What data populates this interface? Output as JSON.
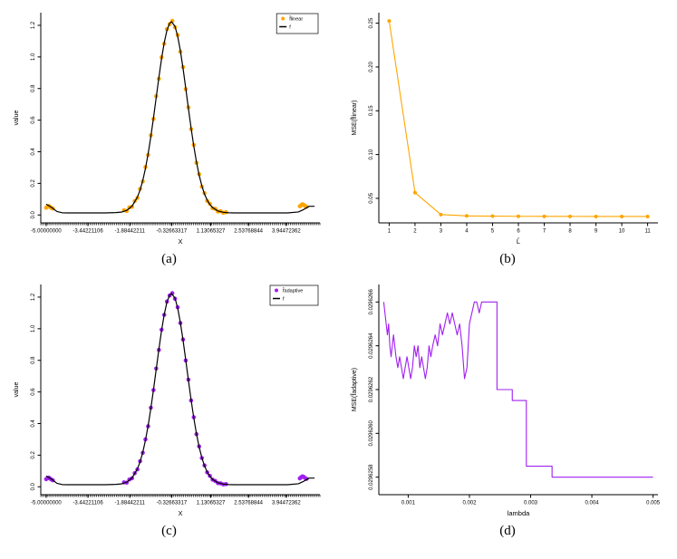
{
  "figure": {
    "background": "#ffffff"
  },
  "captions": {
    "a": "(a)",
    "b": "(b)",
    "c": "(c)",
    "d": "(d)"
  },
  "colors": {
    "orange": "#FFA500",
    "purple": "#A020F0",
    "black": "#000000"
  },
  "chart_data": [
    {
      "id": "a",
      "type": "line",
      "title": "",
      "xlabel": "X",
      "ylabel": "value",
      "xlim": [
        -5.2,
        5.2
      ],
      "ylim": [
        -0.05,
        1.28
      ],
      "rug": true,
      "x_ticks": {
        "values": [
          -5.0,
          -3.44221106,
          -1.88442211,
          -0.32663317,
          1.13065327,
          2.53768844,
          3.94472362
        ],
        "labels": [
          "-5.00000000",
          "-3.44221106",
          "-1.88442211",
          "-0.32663317",
          "1.13065327",
          "2.53768844",
          "3.94472362"
        ]
      },
      "y_ticks": {
        "values": [
          0,
          0.2,
          0.4,
          0.6,
          0.8,
          1.0,
          1.2
        ],
        "labels": [
          "0.0",
          "0.2",
          "0.4",
          "0.6",
          "0.8",
          "1.0",
          "1.2"
        ]
      },
      "legend": {
        "position": "top-right",
        "entries": [
          {
            "label": "f̂linear",
            "color": "#FFA500",
            "marker": "point"
          },
          {
            "label": "f",
            "color": "#000000",
            "marker": "line"
          }
        ]
      },
      "series": [
        {
          "name": "f̂linear",
          "color": "#FFA500",
          "style": "points",
          "r": 2.3,
          "x": [
            -5,
            -4.95,
            -4.9,
            -4.85,
            -4.8,
            -4.75,
            -2.1,
            -2,
            -1.9,
            -1.8,
            -1.7,
            -1.6,
            -1.5,
            -1.4,
            -1.3,
            -1.2,
            -1.1,
            -1,
            -0.9,
            -0.8,
            -0.7,
            -0.6,
            -0.5,
            -0.4,
            -0.3,
            -0.2,
            -0.1,
            0,
            0.1,
            0.2,
            0.3,
            0.4,
            0.5,
            0.6,
            0.7,
            0.8,
            0.9,
            1,
            1.1,
            1.2,
            1.3,
            1.4,
            1.5,
            1.6,
            1.7,
            4.45,
            4.5,
            4.55,
            4.6,
            4.65,
            4.7
          ],
          "y": [
            0.046,
            0.052,
            0.057,
            0.05,
            0.044,
            0.04,
            0.03,
            0.025,
            0.048,
            0.052,
            0.088,
            0.108,
            0.165,
            0.212,
            0.303,
            0.38,
            0.504,
            0.608,
            0.752,
            0.862,
            0.998,
            1.084,
            1.176,
            1.207,
            1.228,
            1.188,
            1.139,
            1.033,
            0.936,
            0.796,
            0.681,
            0.543,
            0.443,
            0.33,
            0.258,
            0.179,
            0.138,
            0.089,
            0.071,
            0.043,
            0.039,
            0.022,
            0.024,
            0.014,
            0.018,
            0.055,
            0.062,
            0.068,
            0.063,
            0.057,
            0.052
          ]
        },
        {
          "name": "f",
          "color": "#000000",
          "style": "line",
          "width": 1.2,
          "x": [
            -5,
            -4.8,
            -4.6,
            -4.4,
            -4.2,
            -4,
            -3.6,
            -3.2,
            -2.8,
            -2.4,
            -2.2,
            -2,
            -1.8,
            -1.6,
            -1.5,
            -1.4,
            -1.3,
            -1.2,
            -1.1,
            -1,
            -0.9,
            -0.8,
            -0.7,
            -0.6,
            -0.5,
            -0.4,
            -0.33,
            -0.2,
            -0.1,
            0,
            0.1,
            0.2,
            0.3,
            0.4,
            0.5,
            0.6,
            0.7,
            0.8,
            0.9,
            1,
            1.1,
            1.2,
            1.4,
            1.6,
            1.8,
            2,
            2.4,
            2.8,
            3.2,
            3.6,
            4,
            4.4,
            4.6,
            4.8,
            5
          ],
          "y": [
            0.068,
            0.048,
            0.022,
            0.014,
            0.013,
            0.013,
            0.013,
            0.013,
            0.013,
            0.015,
            0.018,
            0.029,
            0.056,
            0.113,
            0.158,
            0.218,
            0.295,
            0.387,
            0.495,
            0.615,
            0.743,
            0.87,
            0.989,
            1.091,
            1.168,
            1.213,
            1.223,
            1.194,
            1.131,
            1.04,
            0.928,
            0.803,
            0.674,
            0.55,
            0.436,
            0.336,
            0.252,
            0.185,
            0.132,
            0.094,
            0.066,
            0.047,
            0.025,
            0.017,
            0.014,
            0.013,
            0.013,
            0.013,
            0.013,
            0.013,
            0.013,
            0.019,
            0.035,
            0.055,
            0.055
          ]
        }
      ]
    },
    {
      "id": "b",
      "type": "line",
      "title": "",
      "xlabel": "L̂",
      "ylabel": "MSE(f̂linear)",
      "xlim": [
        0.6,
        11.4
      ],
      "ylim": [
        0.022,
        0.262
      ],
      "rug": false,
      "x_ticks": {
        "values": [
          1,
          2,
          3,
          4,
          5,
          6,
          7,
          8,
          9,
          10,
          11
        ],
        "labels": [
          "1",
          "2",
          "3",
          "4",
          "5",
          "6",
          "7",
          "8",
          "9",
          "10",
          "11"
        ]
      },
      "y_ticks": {
        "values": [
          0.05,
          0.1,
          0.15,
          0.2,
          0.25
        ],
        "labels": [
          "0.05",
          "0.10",
          "0.15",
          "0.20",
          "0.25"
        ]
      },
      "series": [
        {
          "name": "MSE",
          "color": "#FFA500",
          "style": "line+points",
          "r": 2,
          "width": 1.1,
          "x": [
            1,
            2,
            3,
            4,
            5,
            6,
            7,
            8,
            9,
            10,
            11
          ],
          "y": [
            0.2525,
            0.0565,
            0.0315,
            0.03,
            0.0297,
            0.0295,
            0.0294,
            0.0294,
            0.0293,
            0.0293,
            0.0293
          ]
        }
      ]
    },
    {
      "id": "c",
      "type": "line",
      "title": "",
      "xlabel": "X",
      "ylabel": "value",
      "xlim": [
        -5.2,
        5.2
      ],
      "ylim": [
        -0.05,
        1.28
      ],
      "rug": true,
      "x_ticks": {
        "values": [
          -5.0,
          -3.44221106,
          -1.88442211,
          -0.32663317,
          1.13065327,
          2.53768844,
          3.94472362
        ],
        "labels": [
          "-5.00000000",
          "-3.44221106",
          "-1.88442211",
          "-0.32663317",
          "1.13065327",
          "2.53768844",
          "3.94472362"
        ]
      },
      "y_ticks": {
        "values": [
          0,
          0.2,
          0.4,
          0.6,
          0.8,
          1.0,
          1.2
        ],
        "labels": [
          "0.0",
          "0.2",
          "0.4",
          "0.6",
          "0.8",
          "1.0",
          "1.2"
        ]
      },
      "legend": {
        "position": "top-right",
        "entries": [
          {
            "label": "f̂adaptive",
            "color": "#A020F0",
            "marker": "point"
          },
          {
            "label": "f",
            "color": "#000000",
            "marker": "line"
          }
        ]
      },
      "series": [
        {
          "name": "f̂adaptive",
          "color": "#A020F0",
          "style": "points",
          "r": 2.3,
          "x": [
            -5,
            -4.95,
            -4.9,
            -4.85,
            -4.8,
            -4.75,
            -2.1,
            -2,
            -1.9,
            -1.8,
            -1.7,
            -1.6,
            -1.5,
            -1.4,
            -1.3,
            -1.2,
            -1.1,
            -1,
            -0.9,
            -0.8,
            -0.7,
            -0.6,
            -0.5,
            -0.4,
            -0.3,
            -0.2,
            -0.1,
            0,
            0.1,
            0.2,
            0.3,
            0.4,
            0.5,
            0.6,
            0.7,
            0.8,
            0.9,
            1,
            1.1,
            1.2,
            1.3,
            1.4,
            1.5,
            1.6,
            1.7,
            4.45,
            4.5,
            4.55,
            4.6,
            4.65,
            4.7
          ],
          "y": [
            0.048,
            0.054,
            0.058,
            0.051,
            0.045,
            0.041,
            0.028,
            0.026,
            0.046,
            0.054,
            0.086,
            0.11,
            0.162,
            0.215,
            0.3,
            0.383,
            0.5,
            0.612,
            0.748,
            0.866,
            0.994,
            1.088,
            1.172,
            1.21,
            1.225,
            1.19,
            1.136,
            1.036,
            0.932,
            0.799,
            0.678,
            0.546,
            0.44,
            0.333,
            0.255,
            0.182,
            0.135,
            0.091,
            0.069,
            0.045,
            0.037,
            0.023,
            0.022,
            0.015,
            0.017,
            0.053,
            0.06,
            0.066,
            0.062,
            0.055,
            0.05
          ]
        },
        {
          "name": "f",
          "color": "#000000",
          "style": "line",
          "width": 1.2,
          "x": [
            -5,
            -4.8,
            -4.6,
            -4.4,
            -4.2,
            -4,
            -3.6,
            -3.2,
            -2.8,
            -2.4,
            -2.2,
            -2,
            -1.8,
            -1.6,
            -1.5,
            -1.4,
            -1.3,
            -1.2,
            -1.1,
            -1,
            -0.9,
            -0.8,
            -0.7,
            -0.6,
            -0.5,
            -0.4,
            -0.33,
            -0.2,
            -0.1,
            0,
            0.1,
            0.2,
            0.3,
            0.4,
            0.5,
            0.6,
            0.7,
            0.8,
            0.9,
            1,
            1.1,
            1.2,
            1.4,
            1.6,
            1.8,
            2,
            2.4,
            2.8,
            3.2,
            3.6,
            4,
            4.4,
            4.6,
            4.8,
            5
          ],
          "y": [
            0.068,
            0.048,
            0.022,
            0.014,
            0.013,
            0.013,
            0.013,
            0.013,
            0.013,
            0.015,
            0.018,
            0.029,
            0.056,
            0.113,
            0.158,
            0.218,
            0.295,
            0.387,
            0.495,
            0.615,
            0.743,
            0.87,
            0.989,
            1.091,
            1.168,
            1.213,
            1.223,
            1.194,
            1.131,
            1.04,
            0.928,
            0.803,
            0.674,
            0.55,
            0.436,
            0.336,
            0.252,
            0.185,
            0.132,
            0.094,
            0.066,
            0.047,
            0.025,
            0.017,
            0.014,
            0.013,
            0.013,
            0.013,
            0.013,
            0.013,
            0.013,
            0.019,
            0.035,
            0.055,
            0.055
          ]
        }
      ]
    },
    {
      "id": "d",
      "type": "line",
      "title": "",
      "xlabel": "lambda",
      "ylabel": "MSE(f̂adaptive)",
      "xlim": [
        0.00052,
        0.00508
      ],
      "ylim": [
        0.02962572,
        0.02962668
      ],
      "rug": false,
      "x_ticks": {
        "values": [
          0.001,
          0.002,
          0.003,
          0.004,
          0.005
        ],
        "labels": [
          "0.001",
          "0.002",
          "0.003",
          "0.004",
          "0.005"
        ]
      },
      "y_ticks": {
        "values": [
          0.0296258,
          0.029626,
          0.0296262,
          0.0296264,
          0.0296266
        ],
        "labels": [
          "0.0296258",
          "0.0296260",
          "0.0296262",
          "0.0296264",
          "0.0296266"
        ]
      },
      "series": [
        {
          "name": "MSE",
          "color": "#A020F0",
          "style": "line",
          "width": 1.1,
          "x": [
            0.0006,
            0.00062,
            0.00064,
            0.00066,
            0.00068,
            0.0007,
            0.00072,
            0.00074,
            0.00076,
            0.00078,
            0.0008,
            0.00083,
            0.00086,
            0.00089,
            0.00092,
            0.00095,
            0.00098,
            0.00101,
            0.00104,
            0.00107,
            0.0011,
            0.00113,
            0.00116,
            0.00119,
            0.00122,
            0.00125,
            0.00128,
            0.00131,
            0.00134,
            0.00137,
            0.0014,
            0.00144,
            0.00148,
            0.00152,
            0.00156,
            0.0016,
            0.00164,
            0.00168,
            0.00172,
            0.00176,
            0.0018,
            0.00184,
            0.00188,
            0.00192,
            0.00196,
            0.002,
            0.00204,
            0.00208,
            0.00212,
            0.00216,
            0.0022,
            0.00245,
            0.00245,
            0.0027,
            0.0027,
            0.00293,
            0.00293,
            0.00335,
            0.00335,
            0.005
          ],
          "y": [
            0.0296266,
            0.02962655,
            0.0296265,
            0.02962645,
            0.0296265,
            0.0296264,
            0.02962635,
            0.0296264,
            0.02962645,
            0.0296264,
            0.02962635,
            0.0296263,
            0.02962635,
            0.0296263,
            0.02962625,
            0.0296263,
            0.02962635,
            0.0296263,
            0.02962625,
            0.0296263,
            0.0296264,
            0.02962635,
            0.0296264,
            0.0296263,
            0.02962635,
            0.0296263,
            0.02962625,
            0.0296263,
            0.0296264,
            0.02962635,
            0.0296264,
            0.02962645,
            0.0296264,
            0.0296265,
            0.02962645,
            0.0296265,
            0.02962655,
            0.0296265,
            0.02962655,
            0.0296265,
            0.02962645,
            0.0296265,
            0.0296264,
            0.02962625,
            0.0296263,
            0.0296265,
            0.02962655,
            0.0296266,
            0.0296266,
            0.02962655,
            0.0296266,
            0.0296266,
            0.0296262,
            0.0296262,
            0.02962615,
            0.02962615,
            0.02962585,
            0.02962585,
            0.0296258,
            0.0296258
          ]
        }
      ]
    }
  ]
}
